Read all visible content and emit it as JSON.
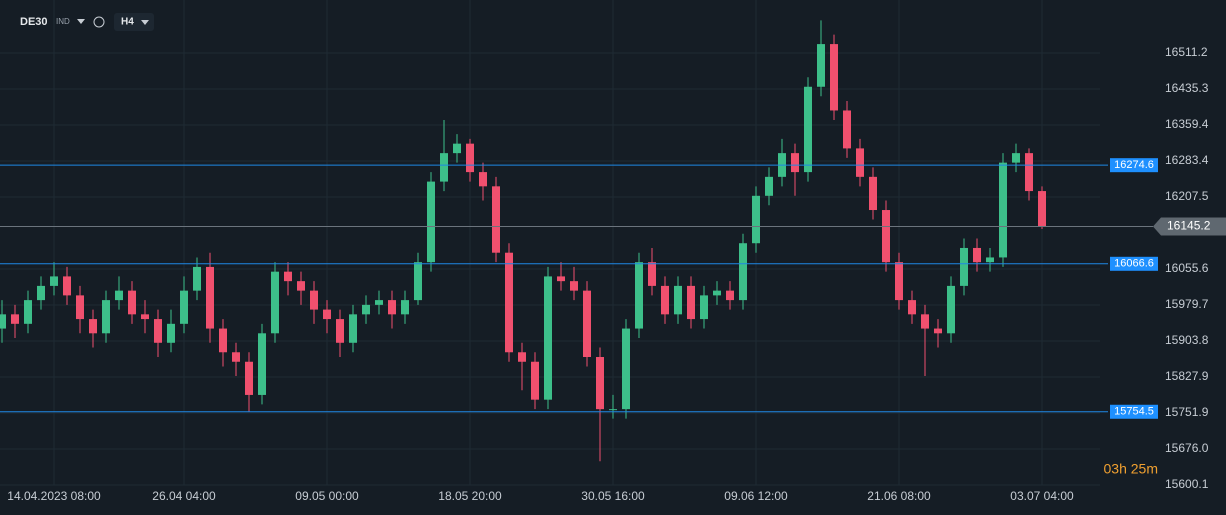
{
  "chart_data": {
    "type": "candlestick",
    "symbol": "DE30",
    "symbol_type": "IND",
    "timeframe": "H4",
    "timer": "03h 25m",
    "up_color": "#3dbf8a",
    "down_color": "#f0506e",
    "grid": true,
    "ylim": [
      15568.4,
      16623
    ],
    "yticks": [
      16511.2,
      16435.3,
      16359.4,
      16283.4,
      16207.5,
      16055.6,
      15979.7,
      15903.8,
      15827.9,
      15751.9,
      {
        "value": 15676,
        "label": "15676.0"
      },
      15600.1
    ],
    "levels": [
      16274.6,
      16066.6,
      15754.5
    ],
    "level_color": "#1e88e5",
    "current_price": 16145.2,
    "categories": [
      null,
      null,
      null,
      null,
      "14.04.2023 08:00",
      null,
      null,
      null,
      null,
      null,
      null,
      null,
      null,
      null,
      "26.04 04:00",
      null,
      null,
      null,
      null,
      null,
      null,
      null,
      null,
      null,
      null,
      "09.05 00:00",
      null,
      null,
      null,
      null,
      null,
      null,
      null,
      null,
      null,
      null,
      "18.05 20:00",
      null,
      null,
      null,
      null,
      null,
      null,
      null,
      null,
      null,
      null,
      "30.05 16:00",
      null,
      null,
      null,
      null,
      null,
      null,
      null,
      null,
      null,
      null,
      "09.06 12:00",
      null,
      null,
      null,
      null,
      null,
      null,
      null,
      null,
      null,
      null,
      "21.06 08:00",
      null,
      null,
      null,
      null,
      null,
      null,
      null,
      null,
      null,
      null,
      "03.07 04:00"
    ],
    "ohlc": [
      [
        15930,
        15990,
        15900,
        15960
      ],
      [
        15960,
        15980,
        15910,
        15940
      ],
      [
        15940,
        16010,
        15920,
        15990
      ],
      [
        15990,
        16040,
        15970,
        16020
      ],
      [
        16020,
        16070,
        16000,
        16040
      ],
      [
        16040,
        16060,
        15980,
        16000
      ],
      [
        16000,
        16020,
        15920,
        15950
      ],
      [
        15950,
        15970,
        15890,
        15920
      ],
      [
        15920,
        16010,
        15900,
        15990
      ],
      [
        15990,
        16040,
        15970,
        16010
      ],
      [
        16010,
        16030,
        15940,
        15960
      ],
      [
        15960,
        15990,
        15920,
        15950
      ],
      [
        15950,
        15970,
        15870,
        15900
      ],
      [
        15900,
        15970,
        15880,
        15940
      ],
      [
        15940,
        16040,
        15920,
        16010
      ],
      [
        16010,
        16080,
        15990,
        16060
      ],
      [
        16060,
        16090,
        15900,
        15930
      ],
      [
        15930,
        15950,
        15850,
        15880
      ],
      [
        15880,
        15900,
        15830,
        15860
      ],
      [
        15860,
        15880,
        15754,
        15790
      ],
      [
        15790,
        15940,
        15770,
        15920
      ],
      [
        15920,
        16070,
        15900,
        16050
      ],
      [
        16050,
        16070,
        16000,
        16030
      ],
      [
        16030,
        16050,
        15980,
        16010
      ],
      [
        16010,
        16030,
        15940,
        15970
      ],
      [
        15970,
        15990,
        15920,
        15950
      ],
      [
        15950,
        15970,
        15870,
        15900
      ],
      [
        15900,
        15980,
        15880,
        15960
      ],
      [
        15960,
        16000,
        15940,
        15980
      ],
      [
        15980,
        16010,
        15960,
        15990
      ],
      [
        15990,
        16010,
        15930,
        15960
      ],
      [
        15960,
        16010,
        15940,
        15990
      ],
      [
        15990,
        16090,
        15980,
        16070
      ],
      [
        16070,
        16260,
        16050,
        16240
      ],
      [
        16240,
        16370,
        16220,
        16300
      ],
      [
        16300,
        16340,
        16280,
        16320
      ],
      [
        16320,
        16330,
        16240,
        16260
      ],
      [
        16260,
        16280,
        16200,
        16230
      ],
      [
        16230,
        16250,
        16070,
        16090
      ],
      [
        16090,
        16110,
        15860,
        15880
      ],
      [
        15880,
        15900,
        15800,
        15860
      ],
      [
        15860,
        15880,
        15760,
        15780
      ],
      [
        15780,
        16060,
        15760,
        16040
      ],
      [
        16040,
        16070,
        16010,
        16030
      ],
      [
        16030,
        16060,
        15990,
        16010
      ],
      [
        16010,
        16030,
        15850,
        15870
      ],
      [
        15870,
        15890,
        15650,
        15760
      ],
      [
        15760,
        15790,
        15740,
        15760
      ],
      [
        15760,
        15950,
        15740,
        15930
      ],
      [
        15930,
        16090,
        15910,
        16070
      ],
      [
        16070,
        16100,
        16000,
        16020
      ],
      [
        16020,
        16040,
        15940,
        15960
      ],
      [
        15960,
        16040,
        15940,
        16020
      ],
      [
        16020,
        16040,
        15930,
        15950
      ],
      [
        15950,
        16020,
        15930,
        16000
      ],
      [
        16000,
        16030,
        15980,
        16010
      ],
      [
        16010,
        16030,
        15970,
        15990
      ],
      [
        15990,
        16130,
        15970,
        16110
      ],
      [
        16110,
        16230,
        16090,
        16210
      ],
      [
        16210,
        16270,
        16190,
        16250
      ],
      [
        16250,
        16330,
        16230,
        16300
      ],
      [
        16300,
        16320,
        16210,
        16260
      ],
      [
        16260,
        16460,
        16240,
        16440
      ],
      [
        16440,
        16580,
        16420,
        16530
      ],
      [
        16530,
        16550,
        16370,
        16390
      ],
      [
        16390,
        16410,
        16290,
        16310
      ],
      [
        16310,
        16330,
        16230,
        16250
      ],
      [
        16250,
        16270,
        16160,
        16180
      ],
      [
        16180,
        16200,
        16050,
        16070
      ],
      [
        16070,
        16090,
        15970,
        15990
      ],
      [
        15990,
        16010,
        15940,
        15960
      ],
      [
        15960,
        15980,
        15830,
        15930
      ],
      [
        15930,
        15950,
        15890,
        15920
      ],
      [
        15920,
        16040,
        15900,
        16020
      ],
      [
        16020,
        16120,
        16000,
        16100
      ],
      [
        16100,
        16120,
        16050,
        16070
      ],
      [
        16070,
        16100,
        16050,
        16080
      ],
      [
        16080,
        16300,
        16060,
        16280
      ],
      [
        16280,
        16320,
        16260,
        16300
      ],
      [
        16300,
        16310,
        16200,
        16220
      ],
      [
        16220,
        16230,
        16140,
        16145
      ]
    ]
  }
}
